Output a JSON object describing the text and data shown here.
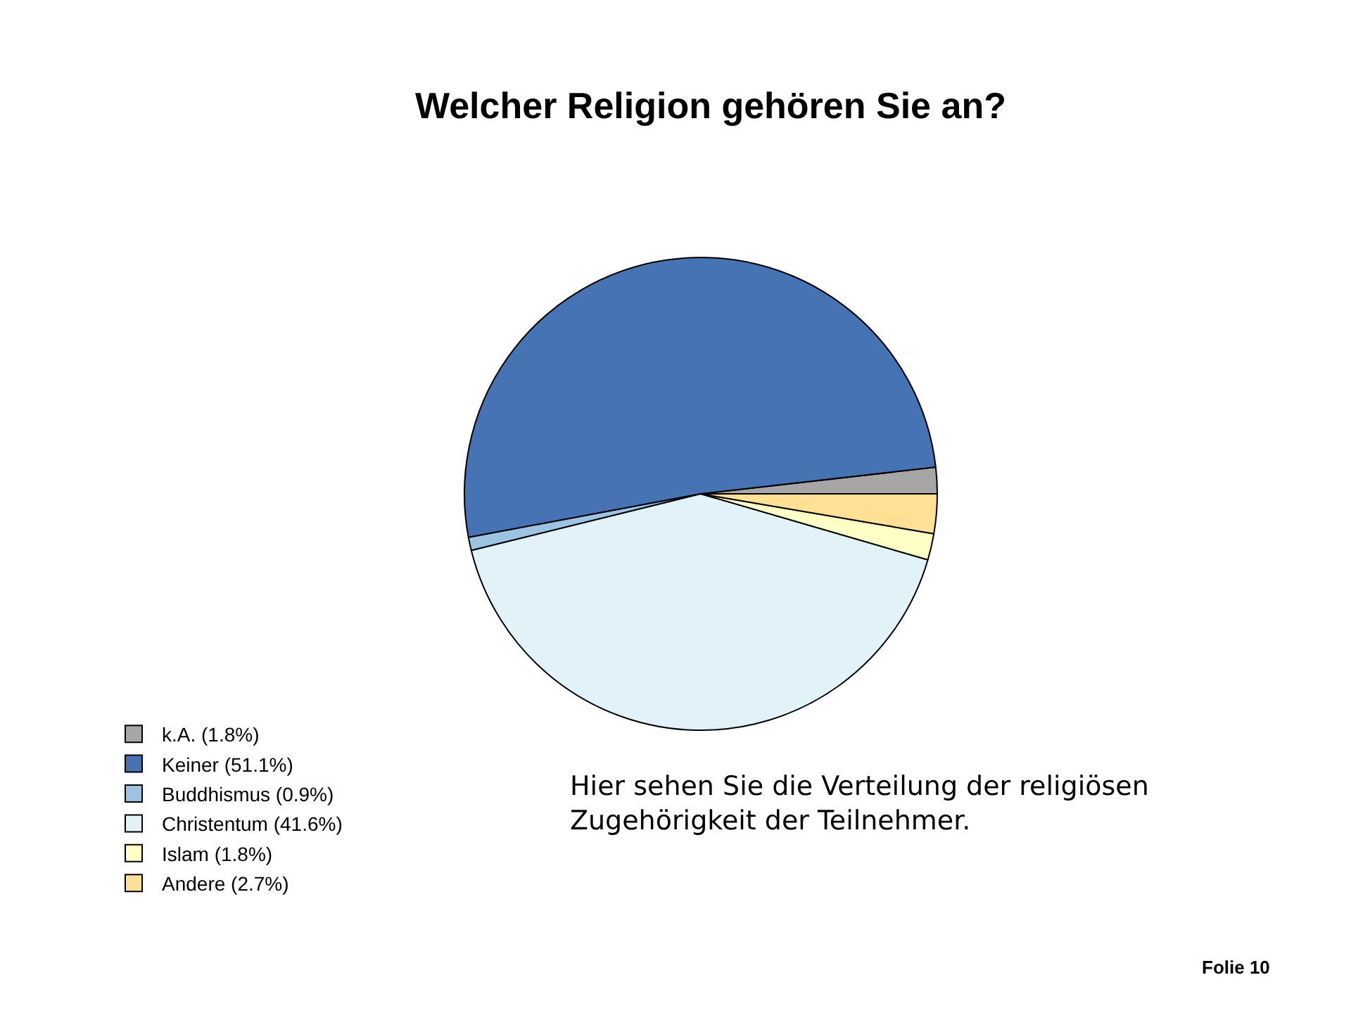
{
  "chart_data": {
    "type": "pie",
    "title": "Welcher Religion gehören Sie an?",
    "categories": [
      "k.A. (1.8%)",
      "Keiner (51.1%)",
      "Buddhismus (0.9%)",
      "Christentum (41.6%)",
      "Islam (1.8%)",
      "Andere (2.7%)"
    ],
    "values": [
      1.8,
      51.1,
      0.9,
      41.6,
      1.8,
      2.7
    ],
    "colors": [
      "#a6a6a6",
      "#4673b4",
      "#9cc3e2",
      "#e1f3f9",
      "#ffffc6",
      "#ffe195"
    ],
    "legend": "bottom left",
    "annotations": [
      "Hier sehen Sie die Verteilung der religiösen Zugehörigkeit der Teilnehmer.",
      "Folie 10"
    ]
  }
}
